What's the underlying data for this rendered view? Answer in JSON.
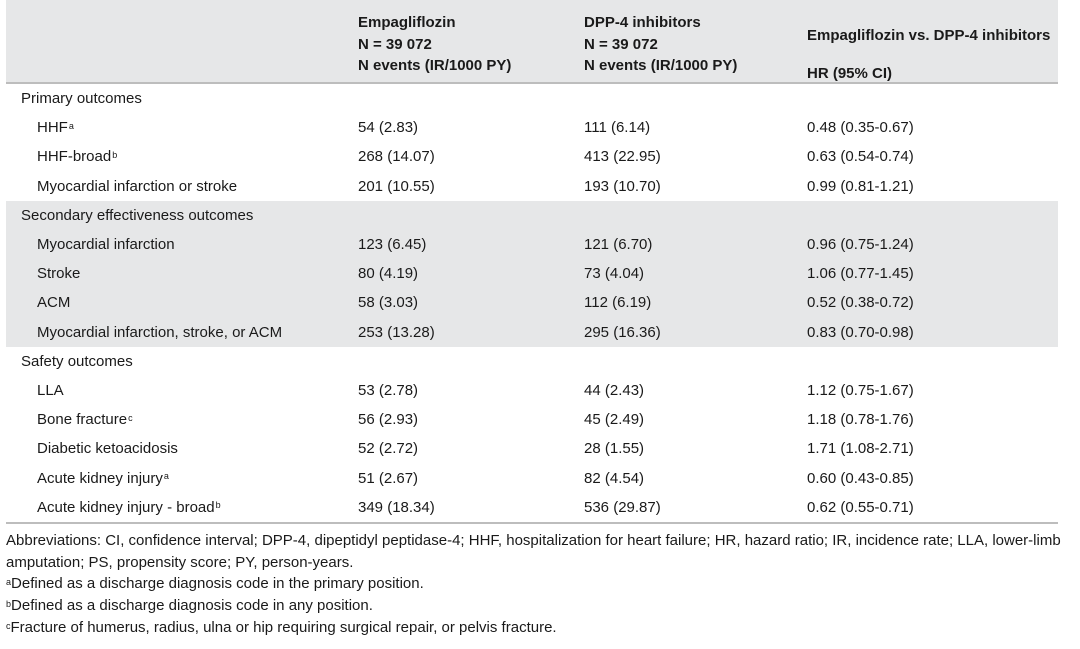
{
  "header": {
    "col1": [
      "Empagliflozin",
      "N = 39 072",
      "N events (IR/1000 PY)"
    ],
    "col2": [
      "DPP-4 inhibitors",
      "N = 39 072",
      "N events (IR/1000 PY)"
    ],
    "col3": [
      "Empagliflozin vs. DPP-4 inhibitors",
      "HR (95% CI)"
    ]
  },
  "rows": [
    {
      "label": "Primary outcomes",
      "section": true
    },
    {
      "label": "HHF",
      "sup": "a",
      "empa": "54 (2.83)",
      "dpp4": "111 (6.14)",
      "hr": "0.48 (0.35-0.67)"
    },
    {
      "label": "HHF-broad",
      "sup": "b",
      "empa": "268 (14.07)",
      "dpp4": "413 (22.95)",
      "hr": "0.63 (0.54-0.74)"
    },
    {
      "label": "Myocardial infarction or stroke",
      "empa": "201 (10.55)",
      "dpp4": "193 (10.70)",
      "hr": "0.99 (0.81-1.21)"
    },
    {
      "label": "Secondary effectiveness outcomes",
      "section": true
    },
    {
      "label": "Myocardial infarction",
      "empa": "123 (6.45)",
      "dpp4": "121 (6.70)",
      "hr": "0.96 (0.75-1.24)"
    },
    {
      "label": "Stroke",
      "empa": "80 (4.19)",
      "dpp4": "73 (4.04)",
      "hr": "1.06 (0.77-1.45)"
    },
    {
      "label": "ACM",
      "empa": "58 (3.03)",
      "dpp4": "112 (6.19)",
      "hr": "0.52 (0.38-0.72)"
    },
    {
      "label": "Myocardial infarction, stroke, or ACM",
      "empa": "253 (13.28)",
      "dpp4": "295 (16.36)",
      "hr": "0.83 (0.70-0.98)"
    },
    {
      "label": "Safety outcomes",
      "section": true
    },
    {
      "label": "LLA",
      "empa": "53 (2.78)",
      "dpp4": "44 (2.43)",
      "hr": "1.12 (0.75-1.67)"
    },
    {
      "label": "Bone fracture",
      "sup": "c",
      "empa": "56 (2.93)",
      "dpp4": "45 (2.49)",
      "hr": "1.18 (0.78-1.76)"
    },
    {
      "label": "Diabetic ketoacidosis",
      "empa": "52 (2.72)",
      "dpp4": "28 (1.55)",
      "hr": "1.71 (1.08-2.71)"
    },
    {
      "label": "Acute kidney injury",
      "sup": "a",
      "empa": "51 (2.67)",
      "dpp4": "82 (4.54)",
      "hr": "0.60 (0.43-0.85)"
    },
    {
      "label": "Acute kidney injury - broad",
      "sup": "b",
      "empa": "349 (18.34)",
      "dpp4": "536 (29.87)",
      "hr": "0.62 (0.55-0.71)"
    }
  ],
  "notes": {
    "abbrev": "Abbreviations: CI, confidence interval; DPP-4, dipeptidyl peptidase-4; HHF, hospitalization for heart failure; HR, hazard ratio; IR, incidence rate; LLA, lower-limb amputation; PS, propensity score; PY, person-years.",
    "a_mark": "a",
    "a": "Defined as a discharge diagnosis code in the primary position.",
    "b_mark": "b",
    "b": "Defined as a discharge diagnosis code in any position.",
    "c_mark": "c",
    "c": "Fracture of humerus, radius, ulna or hip requiring surgical repair, or pelvis fracture."
  }
}
